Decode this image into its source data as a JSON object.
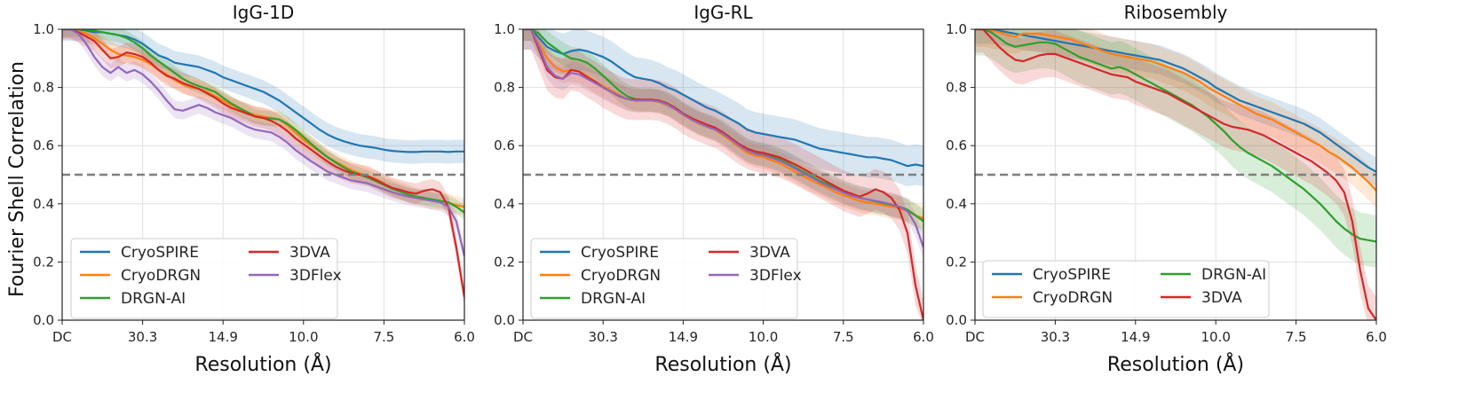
{
  "figure": {
    "ylabel": "Fourier Shell Correlation",
    "threshold": 0.5
  },
  "colors": {
    "CryoSPIRE": "#1f77b4",
    "CryoDRGN": "#ff7f0e",
    "DRGN-AI": "#2ca02c",
    "3DVA": "#d62728",
    "3DFlex": "#9467bd"
  },
  "chart_data": [
    {
      "type": "line",
      "title": "IgG-1D",
      "xlabel": "Resolution (Å)",
      "ylabel": "Fourier Shell Correlation",
      "xticks": [
        "DC",
        "30.3",
        "14.9",
        "10.0",
        "7.5",
        "6.0"
      ],
      "yticks": [
        "0.0",
        "0.2",
        "0.4",
        "0.6",
        "0.8",
        "1.0"
      ],
      "xlim": [
        0,
        1
      ],
      "ylim": [
        0,
        1
      ],
      "legend": {
        "position": "bottom-left",
        "columns": 2,
        "order": [
          "CryoSPIRE",
          "CryoDRGN",
          "DRGN-AI",
          "3DVA",
          "3DFlex"
        ]
      },
      "x": [
        0,
        0.02,
        0.04,
        0.06,
        0.08,
        0.1,
        0.12,
        0.14,
        0.16,
        0.18,
        0.2,
        0.22,
        0.24,
        0.26,
        0.28,
        0.3,
        0.32,
        0.34,
        0.36,
        0.38,
        0.4,
        0.42,
        0.44,
        0.46,
        0.48,
        0.5,
        0.52,
        0.54,
        0.56,
        0.58,
        0.6,
        0.62,
        0.64,
        0.66,
        0.68,
        0.7,
        0.72,
        0.74,
        0.76,
        0.78,
        0.8,
        0.82,
        0.84,
        0.86,
        0.88,
        0.9,
        0.92,
        0.94,
        0.96,
        0.98,
        1.0
      ],
      "series": [
        {
          "name": "CryoSPIRE",
          "band": 0.04,
          "values": [
            1.0,
            1.0,
            1.0,
            0.995,
            0.99,
            0.99,
            0.985,
            0.98,
            0.975,
            0.965,
            0.95,
            0.93,
            0.91,
            0.9,
            0.885,
            0.88,
            0.875,
            0.87,
            0.86,
            0.85,
            0.835,
            0.825,
            0.815,
            0.805,
            0.795,
            0.785,
            0.77,
            0.755,
            0.735,
            0.715,
            0.695,
            0.675,
            0.655,
            0.638,
            0.625,
            0.615,
            0.607,
            0.6,
            0.596,
            0.592,
            0.586,
            0.582,
            0.58,
            0.578,
            0.578,
            0.58,
            0.58,
            0.58,
            0.578,
            0.58,
            0.58
          ]
        },
        {
          "name": "CryoDRGN",
          "band": 0.03,
          "values": [
            1.0,
            1.0,
            0.995,
            0.985,
            0.97,
            0.95,
            0.93,
            0.915,
            0.91,
            0.905,
            0.895,
            0.88,
            0.86,
            0.845,
            0.825,
            0.81,
            0.8,
            0.795,
            0.785,
            0.77,
            0.755,
            0.74,
            0.725,
            0.715,
            0.705,
            0.7,
            0.695,
            0.69,
            0.67,
            0.645,
            0.62,
            0.6,
            0.58,
            0.56,
            0.545,
            0.53,
            0.515,
            0.505,
            0.495,
            0.485,
            0.47,
            0.455,
            0.445,
            0.435,
            0.425,
            0.42,
            0.41,
            0.41,
            0.405,
            0.395,
            0.39
          ]
        },
        {
          "name": "DRGN-AI",
          "band": 0.025,
          "values": [
            1.0,
            1.0,
            1.0,
            0.998,
            0.995,
            0.99,
            0.985,
            0.98,
            0.97,
            0.955,
            0.935,
            0.91,
            0.89,
            0.87,
            0.85,
            0.83,
            0.815,
            0.805,
            0.795,
            0.785,
            0.765,
            0.745,
            0.73,
            0.715,
            0.7,
            0.695,
            0.693,
            0.69,
            0.675,
            0.655,
            0.63,
            0.605,
            0.582,
            0.56,
            0.542,
            0.525,
            0.51,
            0.5,
            0.49,
            0.478,
            0.465,
            0.452,
            0.442,
            0.432,
            0.425,
            0.42,
            0.415,
            0.41,
            0.405,
            0.39,
            0.37
          ]
        },
        {
          "name": "3DVA",
          "band": 0.035,
          "values": [
            1.0,
            1.0,
            0.99,
            0.975,
            0.96,
            0.93,
            0.9,
            0.905,
            0.92,
            0.915,
            0.905,
            0.885,
            0.86,
            0.84,
            0.83,
            0.815,
            0.805,
            0.795,
            0.78,
            0.765,
            0.745,
            0.73,
            0.72,
            0.71,
            0.7,
            0.695,
            0.685,
            0.67,
            0.65,
            0.625,
            0.605,
            0.585,
            0.565,
            0.545,
            0.528,
            0.515,
            0.505,
            0.5,
            0.495,
            0.482,
            0.468,
            0.455,
            0.448,
            0.44,
            0.435,
            0.445,
            0.45,
            0.44,
            0.39,
            0.25,
            0.08
          ]
        },
        {
          "name": "3DFlex",
          "band": 0.03,
          "values": [
            1.0,
            1.0,
            0.985,
            0.95,
            0.905,
            0.87,
            0.85,
            0.87,
            0.85,
            0.86,
            0.845,
            0.82,
            0.79,
            0.755,
            0.725,
            0.72,
            0.73,
            0.74,
            0.73,
            0.715,
            0.705,
            0.695,
            0.68,
            0.665,
            0.655,
            0.65,
            0.645,
            0.63,
            0.61,
            0.585,
            0.565,
            0.545,
            0.528,
            0.51,
            0.5,
            0.49,
            0.48,
            0.475,
            0.47,
            0.46,
            0.45,
            0.44,
            0.432,
            0.425,
            0.42,
            0.415,
            0.41,
            0.405,
            0.39,
            0.34,
            0.22
          ]
        }
      ]
    },
    {
      "type": "line",
      "title": "IgG-RL",
      "xlabel": "Resolution (Å)",
      "ylabel": "",
      "xticks": [
        "DC",
        "30.3",
        "14.9",
        "10.0",
        "7.5",
        "6.0"
      ],
      "yticks": [
        "0.0",
        "0.2",
        "0.4",
        "0.6",
        "0.8",
        "1.0"
      ],
      "xlim": [
        0,
        1
      ],
      "ylim": [
        0,
        1
      ],
      "legend": {
        "position": "bottom-left",
        "columns": 2,
        "order": [
          "CryoSPIRE",
          "CryoDRGN",
          "DRGN-AI",
          "3DVA",
          "3DFlex"
        ]
      },
      "x": [
        0,
        0.02,
        0.04,
        0.06,
        0.08,
        0.1,
        0.12,
        0.14,
        0.16,
        0.18,
        0.2,
        0.22,
        0.24,
        0.26,
        0.28,
        0.3,
        0.32,
        0.34,
        0.36,
        0.38,
        0.4,
        0.42,
        0.44,
        0.46,
        0.48,
        0.5,
        0.52,
        0.54,
        0.56,
        0.58,
        0.6,
        0.62,
        0.64,
        0.66,
        0.68,
        0.7,
        0.72,
        0.74,
        0.76,
        0.78,
        0.8,
        0.82,
        0.84,
        0.86,
        0.88,
        0.9,
        0.92,
        0.94,
        0.96,
        0.98,
        1.0
      ],
      "series": [
        {
          "name": "CryoSPIRE",
          "band": 0.07,
          "values": [
            1.0,
            1.0,
            0.97,
            0.94,
            0.925,
            0.915,
            0.925,
            0.93,
            0.925,
            0.915,
            0.905,
            0.89,
            0.87,
            0.85,
            0.835,
            0.83,
            0.825,
            0.815,
            0.8,
            0.79,
            0.775,
            0.76,
            0.745,
            0.73,
            0.72,
            0.705,
            0.69,
            0.675,
            0.655,
            0.645,
            0.64,
            0.635,
            0.63,
            0.625,
            0.62,
            0.61,
            0.6,
            0.59,
            0.585,
            0.58,
            0.575,
            0.57,
            0.565,
            0.56,
            0.56,
            0.555,
            0.55,
            0.54,
            0.53,
            0.535,
            0.53
          ]
        },
        {
          "name": "CryoDRGN",
          "band": 0.04,
          "values": [
            1.0,
            1.0,
            0.95,
            0.9,
            0.87,
            0.855,
            0.86,
            0.855,
            0.84,
            0.82,
            0.805,
            0.79,
            0.775,
            0.76,
            0.755,
            0.755,
            0.755,
            0.75,
            0.74,
            0.725,
            0.705,
            0.69,
            0.675,
            0.665,
            0.655,
            0.635,
            0.615,
            0.595,
            0.575,
            0.565,
            0.56,
            0.55,
            0.54,
            0.525,
            0.51,
            0.495,
            0.48,
            0.468,
            0.455,
            0.44,
            0.43,
            0.42,
            0.41,
            0.405,
            0.4,
            0.395,
            0.39,
            0.385,
            0.375,
            0.36,
            0.35
          ]
        },
        {
          "name": "DRGN-AI",
          "band": 0.04,
          "values": [
            1.0,
            1.0,
            0.985,
            0.955,
            0.935,
            0.915,
            0.9,
            0.895,
            0.885,
            0.865,
            0.84,
            0.815,
            0.79,
            0.77,
            0.76,
            0.757,
            0.757,
            0.755,
            0.745,
            0.73,
            0.71,
            0.695,
            0.68,
            0.67,
            0.66,
            0.645,
            0.625,
            0.605,
            0.585,
            0.575,
            0.57,
            0.562,
            0.553,
            0.54,
            0.525,
            0.51,
            0.495,
            0.48,
            0.468,
            0.455,
            0.442,
            0.432,
            0.422,
            0.415,
            0.408,
            0.402,
            0.396,
            0.39,
            0.38,
            0.36,
            0.34
          ]
        },
        {
          "name": "3DVA",
          "band": 0.07,
          "values": [
            1.0,
            1.0,
            0.93,
            0.86,
            0.835,
            0.83,
            0.86,
            0.855,
            0.835,
            0.82,
            0.8,
            0.785,
            0.77,
            0.76,
            0.758,
            0.758,
            0.758,
            0.755,
            0.745,
            0.73,
            0.71,
            0.695,
            0.683,
            0.672,
            0.662,
            0.645,
            0.625,
            0.605,
            0.59,
            0.58,
            0.575,
            0.568,
            0.56,
            0.548,
            0.535,
            0.52,
            0.505,
            0.49,
            0.475,
            0.46,
            0.445,
            0.435,
            0.425,
            0.435,
            0.45,
            0.44,
            0.42,
            0.38,
            0.3,
            0.12,
            0.0
          ]
        },
        {
          "name": "3DFlex",
          "band": 0.04,
          "values": [
            1.0,
            1.0,
            0.94,
            0.87,
            0.84,
            0.83,
            0.85,
            0.845,
            0.83,
            0.815,
            0.8,
            0.785,
            0.772,
            0.76,
            0.755,
            0.755,
            0.755,
            0.752,
            0.742,
            0.726,
            0.707,
            0.69,
            0.677,
            0.665,
            0.655,
            0.64,
            0.62,
            0.6,
            0.582,
            0.572,
            0.567,
            0.558,
            0.548,
            0.535,
            0.52,
            0.505,
            0.49,
            0.475,
            0.462,
            0.45,
            0.438,
            0.428,
            0.42,
            0.415,
            0.41,
            0.405,
            0.398,
            0.39,
            0.375,
            0.33,
            0.25
          ]
        }
      ]
    },
    {
      "type": "line",
      "title": "Ribosembly",
      "xlabel": "Resolution (Å)",
      "ylabel": "",
      "xticks": [
        "DC",
        "30.3",
        "14.9",
        "10.0",
        "7.5",
        "6.0"
      ],
      "yticks": [
        "0.0",
        "0.2",
        "0.4",
        "0.6",
        "0.8",
        "1.0"
      ],
      "xlim": [
        0,
        1
      ],
      "ylim": [
        0,
        1
      ],
      "legend": {
        "position": "bottom-left",
        "columns": 2,
        "order": [
          "CryoSPIRE",
          "CryoDRGN",
          "DRGN-AI",
          "3DVA"
        ]
      },
      "x": [
        0,
        0.02,
        0.04,
        0.06,
        0.08,
        0.1,
        0.12,
        0.14,
        0.16,
        0.18,
        0.2,
        0.22,
        0.24,
        0.26,
        0.28,
        0.3,
        0.32,
        0.34,
        0.36,
        0.38,
        0.4,
        0.42,
        0.44,
        0.46,
        0.48,
        0.5,
        0.52,
        0.54,
        0.56,
        0.58,
        0.6,
        0.62,
        0.64,
        0.66,
        0.68,
        0.7,
        0.72,
        0.74,
        0.76,
        0.78,
        0.8,
        0.82,
        0.84,
        0.86,
        0.88,
        0.9,
        0.92,
        0.94,
        0.96,
        0.98,
        1.0
      ],
      "series": [
        {
          "name": "CryoSPIRE",
          "band": 0.05,
          "values": [
            1.0,
            1.0,
            1.0,
            0.995,
            0.99,
            0.985,
            0.98,
            0.975,
            0.97,
            0.965,
            0.96,
            0.955,
            0.95,
            0.945,
            0.94,
            0.935,
            0.93,
            0.925,
            0.92,
            0.915,
            0.91,
            0.905,
            0.9,
            0.895,
            0.885,
            0.875,
            0.865,
            0.85,
            0.835,
            0.82,
            0.8,
            0.785,
            0.77,
            0.755,
            0.745,
            0.735,
            0.725,
            0.715,
            0.705,
            0.695,
            0.685,
            0.675,
            0.66,
            0.645,
            0.625,
            0.605,
            0.585,
            0.565,
            0.545,
            0.525,
            0.51
          ]
        },
        {
          "name": "CryoDRGN",
          "band": 0.06,
          "values": [
            1.0,
            1.0,
            0.995,
            0.99,
            0.98,
            0.975,
            0.985,
            0.985,
            0.985,
            0.98,
            0.975,
            0.97,
            0.965,
            0.955,
            0.945,
            0.935,
            0.925,
            0.915,
            0.91,
            0.905,
            0.9,
            0.895,
            0.89,
            0.88,
            0.87,
            0.86,
            0.85,
            0.835,
            0.82,
            0.8,
            0.785,
            0.77,
            0.755,
            0.74,
            0.725,
            0.71,
            0.7,
            0.69,
            0.675,
            0.66,
            0.645,
            0.63,
            0.615,
            0.6,
            0.58,
            0.565,
            0.545,
            0.525,
            0.5,
            0.475,
            0.445
          ]
        },
        {
          "name": "DRGN-AI",
          "band": 0.09,
          "values": [
            1.0,
            1.0,
            0.99,
            0.97,
            0.95,
            0.94,
            0.945,
            0.95,
            0.955,
            0.955,
            0.95,
            0.935,
            0.92,
            0.905,
            0.895,
            0.885,
            0.875,
            0.865,
            0.87,
            0.86,
            0.845,
            0.83,
            0.815,
            0.8,
            0.785,
            0.77,
            0.755,
            0.74,
            0.72,
            0.7,
            0.675,
            0.65,
            0.62,
            0.595,
            0.575,
            0.56,
            0.545,
            0.53,
            0.51,
            0.49,
            0.47,
            0.45,
            0.425,
            0.4,
            0.37,
            0.34,
            0.315,
            0.295,
            0.28,
            0.275,
            0.27
          ]
        },
        {
          "name": "3DVA",
          "band": 0.08,
          "values": [
            1.0,
            1.0,
            0.97,
            0.94,
            0.915,
            0.895,
            0.89,
            0.9,
            0.91,
            0.915,
            0.915,
            0.905,
            0.895,
            0.885,
            0.875,
            0.865,
            0.855,
            0.845,
            0.84,
            0.835,
            0.82,
            0.81,
            0.8,
            0.79,
            0.78,
            0.765,
            0.75,
            0.735,
            0.72,
            0.705,
            0.69,
            0.675,
            0.665,
            0.66,
            0.655,
            0.645,
            0.635,
            0.62,
            0.605,
            0.59,
            0.575,
            0.56,
            0.545,
            0.525,
            0.505,
            0.48,
            0.44,
            0.34,
            0.17,
            0.04,
            0.0
          ]
        }
      ]
    }
  ]
}
